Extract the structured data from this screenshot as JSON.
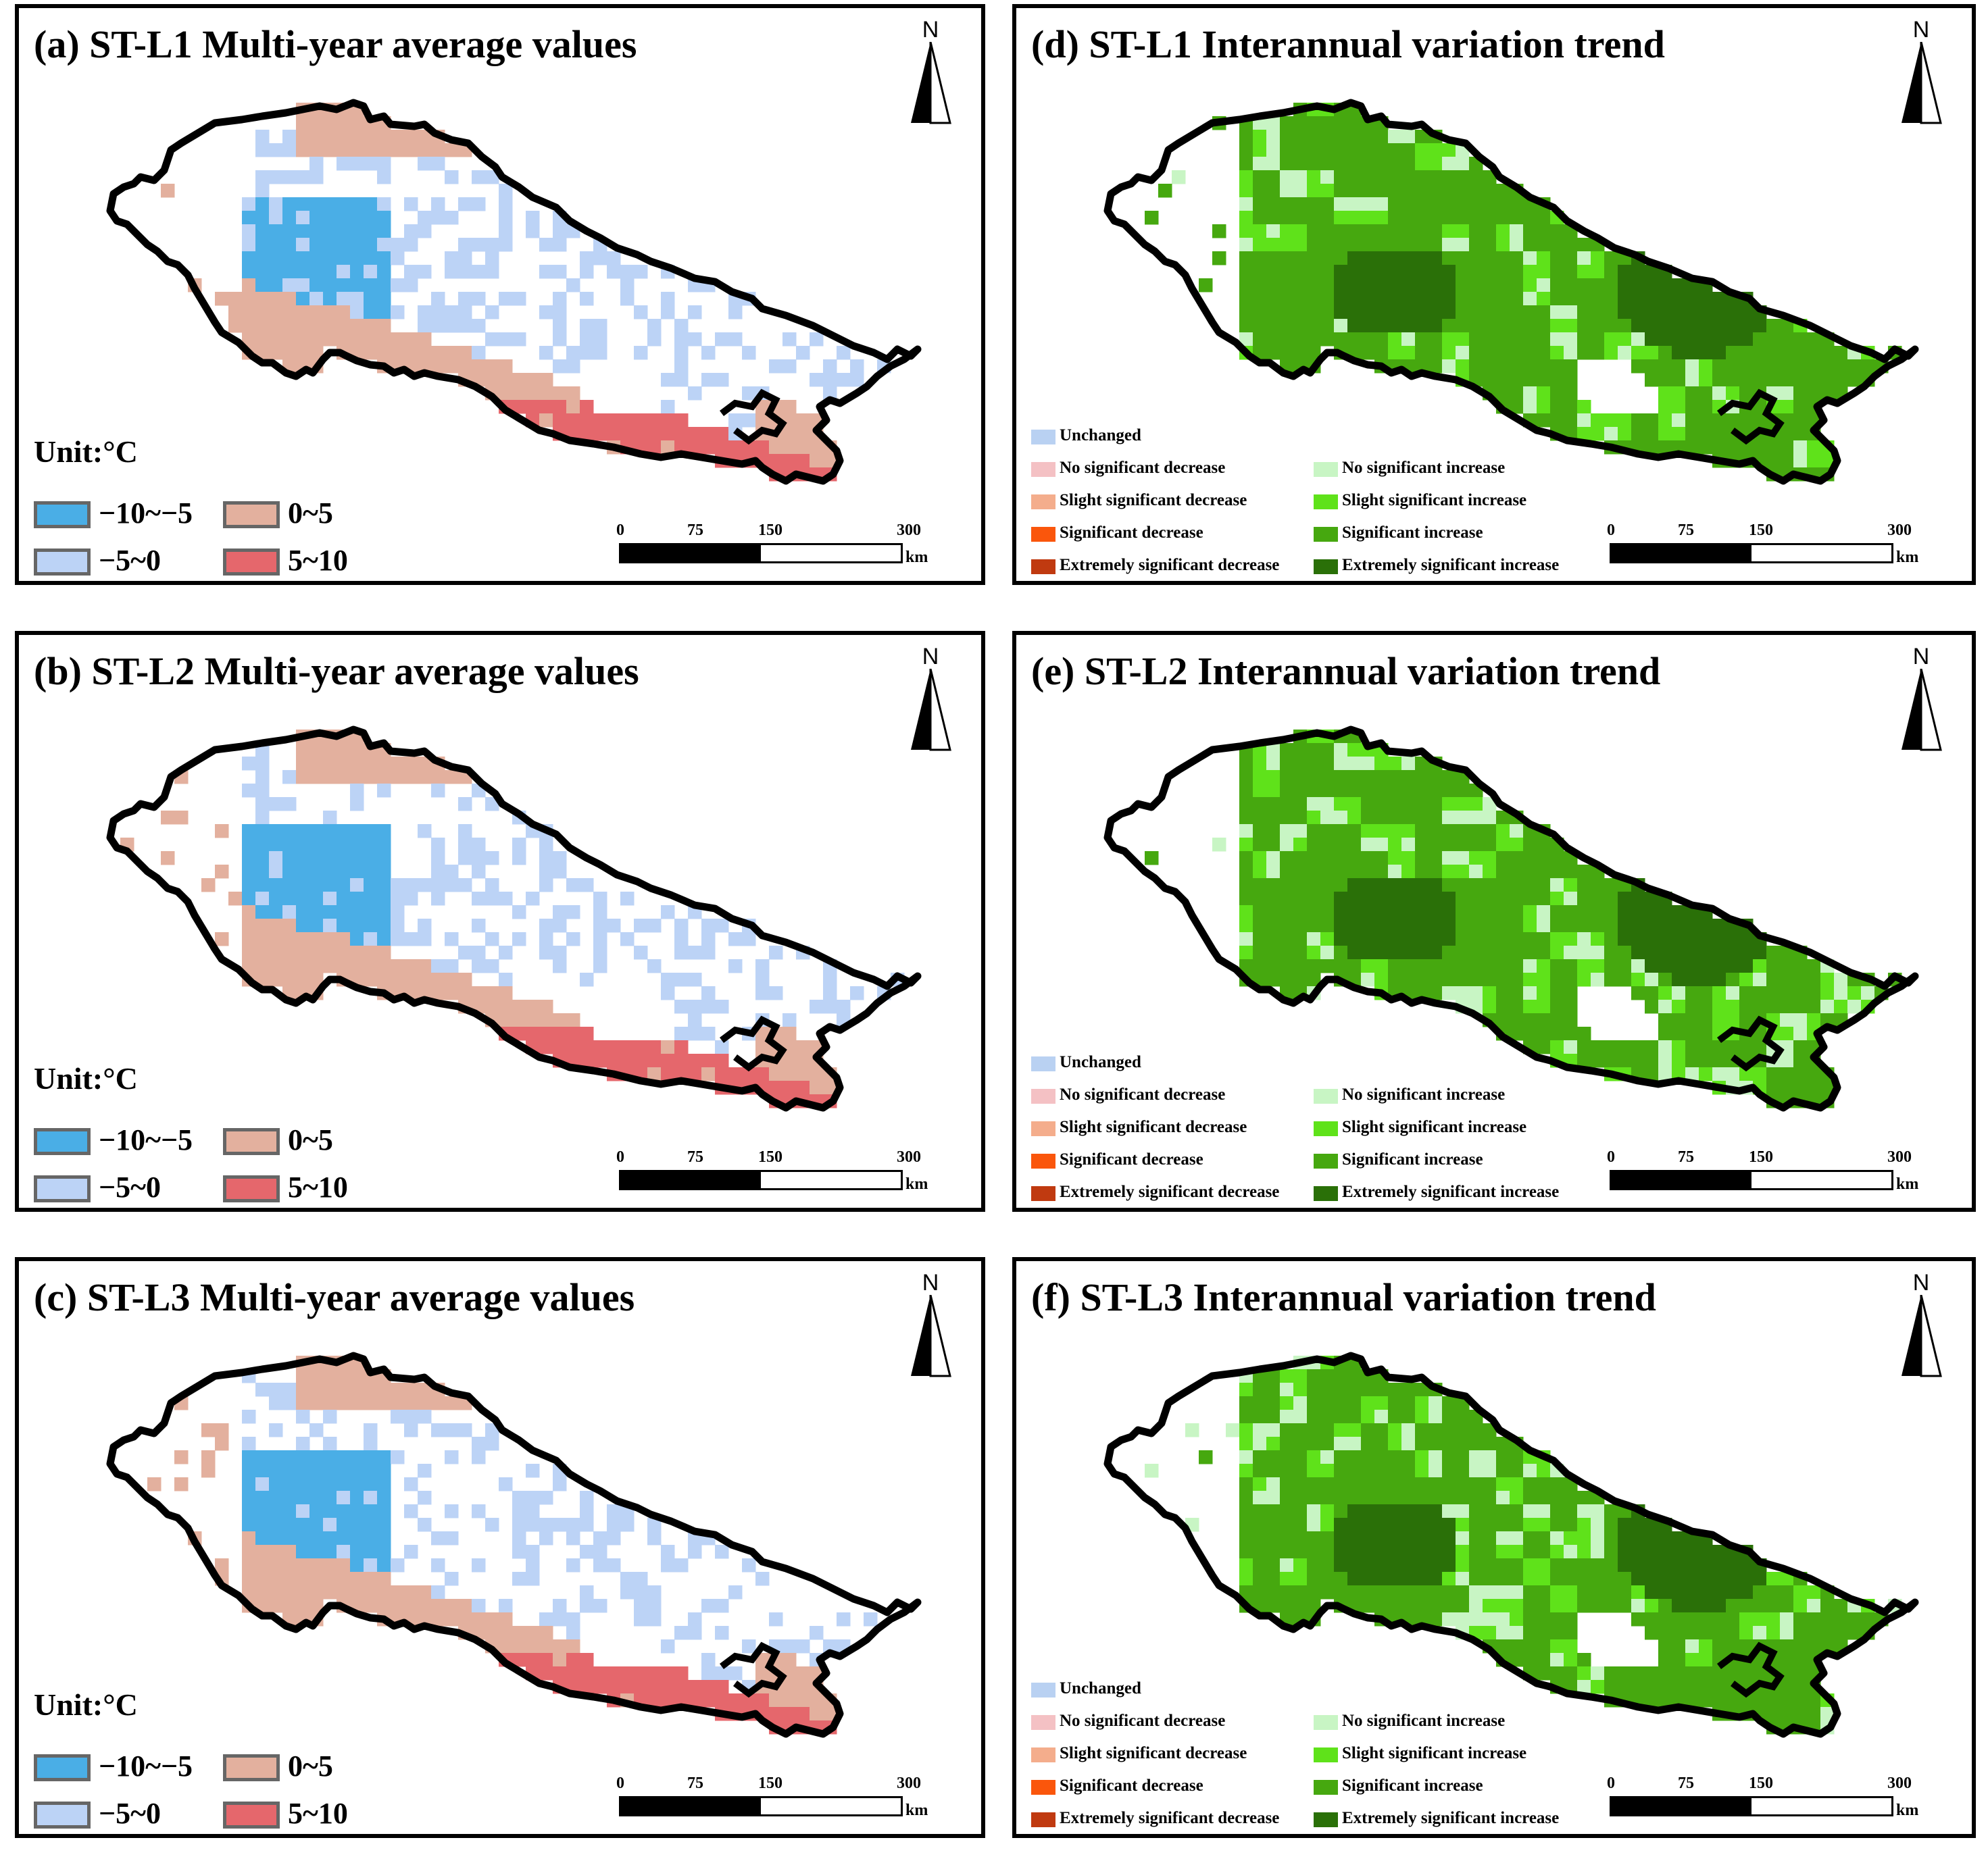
{
  "colors": {
    "cold": "#4aaee6",
    "cool": "#bcd3f6",
    "warm": "#e3b09e",
    "hot": "#e5676c",
    "unchanged": "#b9d1f2",
    "no_sig_decrease": "#f4c1c4",
    "slight_sig_decrease": "#f4ad8c",
    "sig_decrease": "#fa560c",
    "ext_sig_decrease": "#c03a10",
    "no_sig_increase": "#c8f5c4",
    "slight_sig_increase": "#5fe21a",
    "sig_increase": "#46a80f",
    "ext_sig_increase": "#2a7008"
  },
  "panels": [
    {
      "id": "a",
      "title": "(a) ST-L1  Multi-year average values",
      "kind": "avg"
    },
    {
      "id": "b",
      "title": "(b) ST-L2  Multi-year average values",
      "kind": "avg"
    },
    {
      "id": "c",
      "title": "(c) ST-L3  Multi-year average values",
      "kind": "avg"
    },
    {
      "id": "d",
      "title": "(d) ST-L1 Interannual variation trend",
      "kind": "trend"
    },
    {
      "id": "e",
      "title": "(e) ST-L2 Interannual variation trend",
      "kind": "trend"
    },
    {
      "id": "f",
      "title": "(f) ST-L3 Interannual variation trend",
      "kind": "trend"
    }
  ],
  "north_label": "N",
  "avg_legend": {
    "unit": "Unit:°C",
    "classes": [
      "−10~−5",
      "0~5",
      "−5~0",
      "5~10"
    ]
  },
  "trend_legend": {
    "classes": [
      "Unchanged",
      "No significant decrease",
      "No significant increase",
      "Slight significant decrease",
      "Slight significant increase",
      "Significant decrease",
      "Significant increase",
      "Extremely significant decrease",
      "Extremely significant increase"
    ]
  },
  "scale_bar": {
    "ticks": [
      "0",
      "75",
      "150",
      "300"
    ],
    "unit": "km"
  }
}
